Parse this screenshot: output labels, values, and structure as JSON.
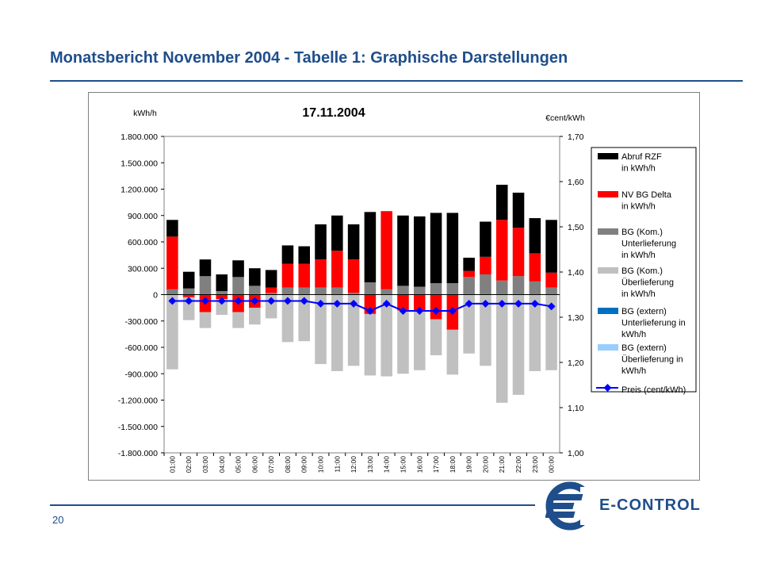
{
  "page": {
    "title": "Monatsbericht November 2004 - Tabelle 1: Graphische Darstellungen",
    "page_number": "20",
    "logo_text": "E-CONTROL",
    "brand_color": "#1f4e8c"
  },
  "chart_data": {
    "type": "bar",
    "title": "17.11.2004",
    "ylabel_left": "kWh/h",
    "ylabel_right": "€cent/kWh",
    "ylim_left": [
      -1800000,
      1800000
    ],
    "ylim_right": [
      1.0,
      1.7
    ],
    "yticks_left": [
      "1.800.000",
      "1.500.000",
      "1.200.000",
      "900.000",
      "600.000",
      "300.000",
      "0",
      "-300.000",
      "-600.000",
      "-900.000",
      "-1.200.000",
      "-1.500.000",
      "-1.800.000"
    ],
    "yticks_right": [
      "1,70",
      "1,60",
      "1,50",
      "1,40",
      "1,30",
      "1,20",
      "1,10",
      "1,00"
    ],
    "grid": false,
    "legend_position": "right",
    "categories": [
      "01:00",
      "02:00",
      "03:00",
      "04:00",
      "05:00",
      "06:00",
      "07:00",
      "08:00",
      "09:00",
      "10:00",
      "11:00",
      "12:00",
      "13:00",
      "14:00",
      "15:00",
      "16:00",
      "17:00",
      "18:00",
      "19:00",
      "20:00",
      "21:00",
      "22:00",
      "23:00",
      "00:00"
    ],
    "series": [
      {
        "name": "Abruf RZF\nin kWh/h",
        "color": "#000000",
        "stack": "pos",
        "values": [
          190000,
          190000,
          190000,
          190000,
          190000,
          200000,
          200000,
          210000,
          200000,
          400000,
          400000,
          400000,
          800000,
          0,
          800000,
          800000,
          800000,
          800000,
          150000,
          400000,
          400000,
          400000,
          400000,
          600000
        ]
      },
      {
        "name": "NV BG Delta\nin kWh/h",
        "color": "#ff0000",
        "stack": "mixed",
        "values": [
          600000,
          -30000,
          -200000,
          -50000,
          -200000,
          -150000,
          60000,
          270000,
          270000,
          320000,
          420000,
          380000,
          -220000,
          890000,
          -180000,
          -180000,
          -280000,
          -400000,
          70000,
          200000,
          690000,
          550000,
          320000,
          170000
        ]
      },
      {
        "name": "BG (Kom.)\nUnterlieferung\nin kWh/h",
        "color": "#808080",
        "stack": "pos",
        "values": [
          60000,
          70000,
          210000,
          40000,
          200000,
          100000,
          20000,
          80000,
          80000,
          80000,
          80000,
          20000,
          140000,
          60000,
          100000,
          90000,
          130000,
          130000,
          200000,
          230000,
          160000,
          210000,
          150000,
          80000
        ]
      },
      {
        "name": "BG (Kom.)\nÜberlieferung\nin kWh/h",
        "color": "#c0c0c0",
        "stack": "neg",
        "values": [
          -850000,
          -260000,
          -180000,
          -180000,
          -180000,
          -190000,
          -270000,
          -540000,
          -530000,
          -790000,
          -870000,
          -810000,
          -700000,
          -930000,
          -720000,
          -680000,
          -410000,
          -510000,
          -670000,
          -810000,
          -1230000,
          -1140000,
          -870000,
          -860000
        ]
      },
      {
        "name": "BG (extern)\nUnterlieferung in\nkWh/h",
        "color": "#0070c0",
        "stack": "pos",
        "values": [
          0,
          0,
          0,
          0,
          0,
          0,
          0,
          0,
          0,
          0,
          0,
          0,
          0,
          0,
          0,
          0,
          0,
          0,
          0,
          0,
          0,
          0,
          0,
          0
        ]
      },
      {
        "name": "BG (extern)\nÜberlieferung in\nkWh/h",
        "color": "#99ccff",
        "stack": "neg",
        "values": [
          0,
          0,
          0,
          0,
          0,
          0,
          0,
          0,
          0,
          0,
          0,
          0,
          0,
          0,
          0,
          0,
          0,
          0,
          0,
          0,
          0,
          0,
          0,
          0
        ]
      },
      {
        "name": "Preis (cent/kWh)",
        "color": "#0000ff",
        "type": "line",
        "axis": "right",
        "values": [
          1.336,
          1.336,
          1.336,
          1.336,
          1.336,
          1.336,
          1.336,
          1.336,
          1.336,
          1.33,
          1.33,
          1.33,
          1.314,
          1.33,
          1.314,
          1.314,
          1.314,
          1.314,
          1.33,
          1.33,
          1.33,
          1.33,
          1.33,
          1.324
        ]
      }
    ]
  }
}
